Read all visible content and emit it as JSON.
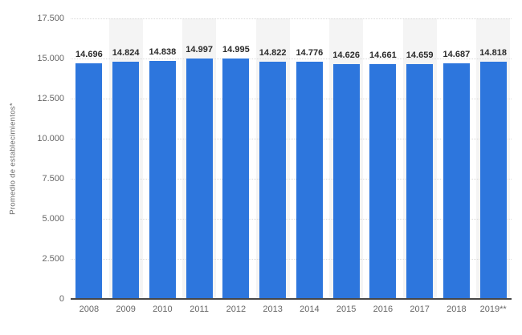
{
  "chart_data": {
    "type": "bar",
    "title": "",
    "xlabel": "",
    "ylabel": "Promedio de establecimientos*",
    "categories": [
      "2008",
      "2009",
      "2010",
      "2011",
      "2012",
      "2013",
      "2014",
      "2015",
      "2016",
      "2017",
      "2018",
      "2019**"
    ],
    "values": [
      14696,
      14824,
      14838,
      14997,
      14995,
      14822,
      14776,
      14626,
      14661,
      14659,
      14687,
      14818
    ],
    "value_labels": [
      "14.696",
      "14.824",
      "14.838",
      "14.997",
      "14.995",
      "14.822",
      "14.776",
      "14.626",
      "14.661",
      "14.659",
      "14.687",
      "14.818"
    ],
    "ylim": [
      0,
      17500
    ],
    "yticks": [
      {
        "value": 0,
        "label": "0"
      },
      {
        "value": 2500,
        "label": "2.500"
      },
      {
        "value": 5000,
        "label": "5.000"
      },
      {
        "value": 7500,
        "label": "7.500"
      },
      {
        "value": 10000,
        "label": "10.000"
      },
      {
        "value": 12500,
        "label": "12.500"
      },
      {
        "value": 15000,
        "label": "15.000"
      },
      {
        "value": 17500,
        "label": "17.500"
      }
    ],
    "grid": "horizontal-dotted",
    "legend": "none",
    "banded_category_indices": [
      1,
      3,
      5,
      7,
      9,
      11
    ]
  },
  "colors": {
    "bar": "#2d76dd",
    "column_band": "#f4f4f4",
    "gridline": "#d9d9d9",
    "axis_line": "#474747",
    "tick_label": "#666666",
    "value_label": "#2b2b2b",
    "background": "#ffffff"
  }
}
